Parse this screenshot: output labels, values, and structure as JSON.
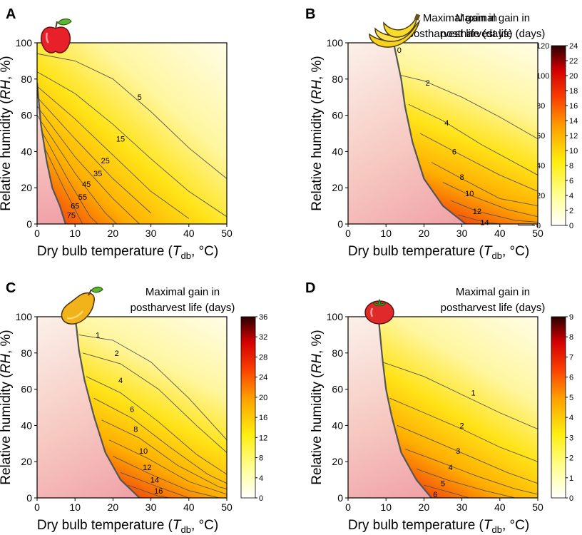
{
  "figure": {
    "xlabel": "Dry bulb temperature (",
    "xlabel_sym": "T",
    "xlabel_sub": "db",
    "xlabel_unit": ", °C)",
    "ylabel": "Relative humidity (",
    "ylabel_sym": "RH",
    "ylabel_unit": ", %)",
    "colorbar_title_line1": "Maximal gain in",
    "colorbar_title_line2": "postharvest life (days)"
  },
  "chart_data": [
    {
      "type": "heatmap",
      "panel": "A",
      "fruit_icon": "apple-icon",
      "xlim": [
        0,
        50
      ],
      "ylim": [
        0,
        100
      ],
      "x_ticks": [
        0,
        10,
        20,
        30,
        40,
        50
      ],
      "y_ticks": [
        0,
        20,
        40,
        60,
        80,
        100
      ],
      "colorbar_max": 120,
      "colorbar_ticks": [
        0,
        20,
        40,
        60,
        80,
        100,
        120
      ],
      "boundary": [
        [
          7.5,
          0
        ],
        [
          6,
          10
        ],
        [
          4,
          20
        ],
        [
          2.5,
          35
        ],
        [
          1,
          55
        ],
        [
          0,
          78
        ]
      ],
      "contours": [
        {
          "label": "5",
          "points": [
            [
              0,
              94
            ],
            [
              10,
              90
            ],
            [
              20,
              80
            ],
            [
              30,
              62
            ],
            [
              40,
              42
            ],
            [
              50,
              25
            ]
          ],
          "label_at": [
            27,
            70
          ]
        },
        {
          "label": "15",
          "points": [
            [
              0,
              84
            ],
            [
              10,
              72
            ],
            [
              20,
              55
            ],
            [
              30,
              36
            ],
            [
              40,
              18
            ],
            [
              50,
              4
            ]
          ],
          "label_at": [
            22,
            47
          ]
        },
        {
          "label": "25",
          "points": [
            [
              0,
              76
            ],
            [
              10,
              58
            ],
            [
              20,
              38
            ],
            [
              30,
              18
            ],
            [
              40,
              3
            ]
          ],
          "label_at": [
            18,
            35
          ]
        },
        {
          "label": "35",
          "points": [
            [
              0,
              70
            ],
            [
              10,
              47
            ],
            [
              20,
              25
            ],
            [
              30,
              6
            ]
          ],
          "label_at": [
            16,
            28
          ]
        },
        {
          "label": "45",
          "points": [
            [
              0,
              65
            ],
            [
              10,
              37
            ],
            [
              20,
              14
            ],
            [
              27,
              0
            ]
          ],
          "label_at": [
            13,
            22
          ]
        },
        {
          "label": "55",
          "points": [
            [
              0,
              60
            ],
            [
              10,
              28
            ],
            [
              18,
              6
            ],
            [
              21,
              0
            ]
          ],
          "label_at": [
            12,
            15
          ]
        },
        {
          "label": "65",
          "points": [
            [
              1,
              52
            ],
            [
              8,
              25
            ],
            [
              14,
              4
            ],
            [
              16,
              0
            ]
          ],
          "label_at": [
            10,
            10
          ]
        },
        {
          "label": "75",
          "points": [
            [
              2,
              42
            ],
            [
              7,
              20
            ],
            [
              11,
              4
            ],
            [
              12,
              0
            ]
          ],
          "label_at": [
            9,
            5
          ]
        }
      ]
    },
    {
      "type": "heatmap",
      "panel": "B",
      "fruit_icon": "banana-icon",
      "xlim": [
        0,
        50
      ],
      "ylim": [
        0,
        100
      ],
      "x_ticks": [
        0,
        10,
        20,
        30,
        40,
        50
      ],
      "y_ticks": [
        0,
        20,
        40,
        60,
        80,
        100
      ],
      "colorbar_max": 24,
      "colorbar_ticks": [
        0,
        2,
        4,
        6,
        8,
        10,
        12,
        14,
        16,
        18,
        20,
        22,
        24
      ],
      "boundary": [
        [
          31,
          0
        ],
        [
          25,
          10
        ],
        [
          20,
          25
        ],
        [
          17,
          45
        ],
        [
          15,
          65
        ],
        [
          14,
          80
        ],
        [
          12.5,
          95
        ],
        [
          12,
          100
        ]
      ],
      "contours": [
        {
          "label": "0",
          "points": [
            [
              12,
              100
            ],
            [
              12.5,
              95
            ]
          ],
          "label_at": [
            13.5,
            96
          ]
        },
        {
          "label": "2",
          "points": [
            [
              14,
              82
            ],
            [
              20,
              79
            ],
            [
              30,
              70
            ],
            [
              40,
              59
            ],
            [
              50,
              47
            ]
          ],
          "label_at": [
            21,
            78
          ]
        },
        {
          "label": "4",
          "points": [
            [
              16,
              66
            ],
            [
              25,
              57
            ],
            [
              35,
              44
            ],
            [
              50,
              27
            ]
          ],
          "label_at": [
            26,
            56
          ]
        },
        {
          "label": "6",
          "points": [
            [
              19,
              50
            ],
            [
              28,
              40
            ],
            [
              40,
              27
            ],
            [
              50,
              18
            ]
          ],
          "label_at": [
            28,
            40
          ]
        },
        {
          "label": "8",
          "points": [
            [
              22,
              34
            ],
            [
              30,
              25
            ],
            [
              40,
              14
            ],
            [
              50,
              10
            ]
          ],
          "label_at": [
            30,
            26
          ]
        },
        {
          "label": "10",
          "points": [
            [
              25,
              23
            ],
            [
              32,
              16
            ],
            [
              42,
              8
            ],
            [
              50,
              4
            ]
          ],
          "label_at": [
            32,
            17
          ]
        },
        {
          "label": "12",
          "points": [
            [
              27,
              13
            ],
            [
              34,
              7
            ],
            [
              44,
              2
            ],
            [
              50,
              1
            ]
          ],
          "label_at": [
            34,
            7
          ]
        },
        {
          "label": "14",
          "points": [
            [
              29,
              5
            ],
            [
              36,
              1
            ],
            [
              40,
              0
            ]
          ],
          "label_at": [
            36,
            1
          ]
        }
      ]
    },
    {
      "type": "heatmap",
      "panel": "C",
      "fruit_icon": "mango-icon",
      "xlim": [
        0,
        50
      ],
      "ylim": [
        0,
        100
      ],
      "x_ticks": [
        0,
        10,
        20,
        30,
        40,
        50
      ],
      "y_ticks": [
        0,
        20,
        40,
        60,
        80,
        100
      ],
      "colorbar_max": 36,
      "colorbar_ticks": [
        0,
        4,
        8,
        12,
        16,
        20,
        24,
        28,
        32,
        36
      ],
      "boundary": [
        [
          27,
          0
        ],
        [
          22,
          10
        ],
        [
          18,
          25
        ],
        [
          15,
          45
        ],
        [
          12.5,
          65
        ],
        [
          11,
          82
        ],
        [
          10.5,
          92
        ],
        [
          10,
          100
        ]
      ],
      "contours": [
        {
          "label": "1",
          "points": [
            [
              11,
              90
            ],
            [
              20,
              87
            ],
            [
              30,
              75
            ],
            [
              40,
              55
            ],
            [
              50,
              32
            ]
          ],
          "label_at": [
            16,
            90
          ]
        },
        {
          "label": "2",
          "points": [
            [
              12,
              80
            ],
            [
              22,
              74
            ],
            [
              32,
              60
            ],
            [
              42,
              40
            ],
            [
              50,
              25
            ]
          ],
          "label_at": [
            21,
            80
          ]
        },
        {
          "label": "4",
          "points": [
            [
              13,
              67
            ],
            [
              22,
              58
            ],
            [
              32,
              42
            ],
            [
              42,
              24
            ],
            [
              50,
              13
            ]
          ],
          "label_at": [
            22,
            65
          ]
        },
        {
          "label": "6",
          "points": [
            [
              15,
              55
            ],
            [
              25,
              44
            ],
            [
              35,
              28
            ],
            [
              45,
              13
            ],
            [
              50,
              8
            ]
          ],
          "label_at": [
            25,
            49
          ]
        },
        {
          "label": "8",
          "points": [
            [
              17,
              43
            ],
            [
              27,
              33
            ],
            [
              37,
              18
            ],
            [
              48,
              6
            ],
            [
              50,
              5
            ]
          ],
          "label_at": [
            26,
            38
          ]
        },
        {
          "label": "10",
          "points": [
            [
              19,
              32
            ],
            [
              29,
              22
            ],
            [
              40,
              9
            ],
            [
              50,
              2
            ]
          ],
          "label_at": [
            28,
            26
          ]
        },
        {
          "label": "12",
          "points": [
            [
              20,
              23
            ],
            [
              30,
              13
            ],
            [
              40,
              4
            ],
            [
              48,
              0
            ]
          ],
          "label_at": [
            29,
            17
          ]
        },
        {
          "label": "14",
          "points": [
            [
              22,
              14
            ],
            [
              32,
              6
            ],
            [
              40,
              0
            ]
          ],
          "label_at": [
            31,
            10
          ]
        },
        {
          "label": "16",
          "points": [
            [
              24,
              7
            ],
            [
              32,
              1
            ],
            [
              35,
              0
            ]
          ],
          "label_at": [
            32,
            4
          ]
        }
      ]
    },
    {
      "type": "heatmap",
      "panel": "D",
      "fruit_icon": "tomato-icon",
      "xlim": [
        0,
        50
      ],
      "ylim": [
        0,
        100
      ],
      "x_ticks": [
        0,
        10,
        20,
        30,
        40,
        50
      ],
      "y_ticks": [
        0,
        20,
        40,
        60,
        80,
        100
      ],
      "colorbar_max": 9,
      "colorbar_ticks": [
        0,
        1,
        2,
        3,
        4,
        5,
        6,
        7,
        8,
        9
      ],
      "boundary": [
        [
          22,
          0
        ],
        [
          18,
          10
        ],
        [
          14,
          25
        ],
        [
          11.5,
          45
        ],
        [
          10,
          60
        ],
        [
          9,
          78
        ],
        [
          8,
          100
        ]
      ],
      "contours": [
        {
          "label": "1",
          "points": [
            [
              9,
              75
            ],
            [
              20,
              67
            ],
            [
              30,
              57
            ],
            [
              40,
              47
            ],
            [
              50,
              38
            ]
          ],
          "label_at": [
            33,
            58
          ]
        },
        {
          "label": "2",
          "points": [
            [
              11,
              55
            ],
            [
              20,
              47
            ],
            [
              30,
              38
            ],
            [
              40,
              28
            ],
            [
              50,
              20
            ]
          ],
          "label_at": [
            30,
            40
          ]
        },
        {
          "label": "3",
          "points": [
            [
              13,
              40
            ],
            [
              22,
              32
            ],
            [
              32,
              23
            ],
            [
              42,
              14
            ],
            [
              50,
              8
            ]
          ],
          "label_at": [
            29,
            26
          ]
        },
        {
          "label": "4",
          "points": [
            [
              15,
              27
            ],
            [
              24,
              20
            ],
            [
              34,
              12
            ],
            [
              44,
              5
            ],
            [
              50,
              2
            ]
          ],
          "label_at": [
            27,
            17
          ]
        },
        {
          "label": "5",
          "points": [
            [
              18,
              16
            ],
            [
              26,
              10
            ],
            [
              36,
              4
            ],
            [
              44,
              0
            ]
          ],
          "label_at": [
            25,
            8
          ]
        },
        {
          "label": "6",
          "points": [
            [
              20,
              7
            ],
            [
              27,
              3
            ],
            [
              32,
              0
            ]
          ],
          "label_at": [
            23,
            2
          ]
        }
      ]
    }
  ]
}
